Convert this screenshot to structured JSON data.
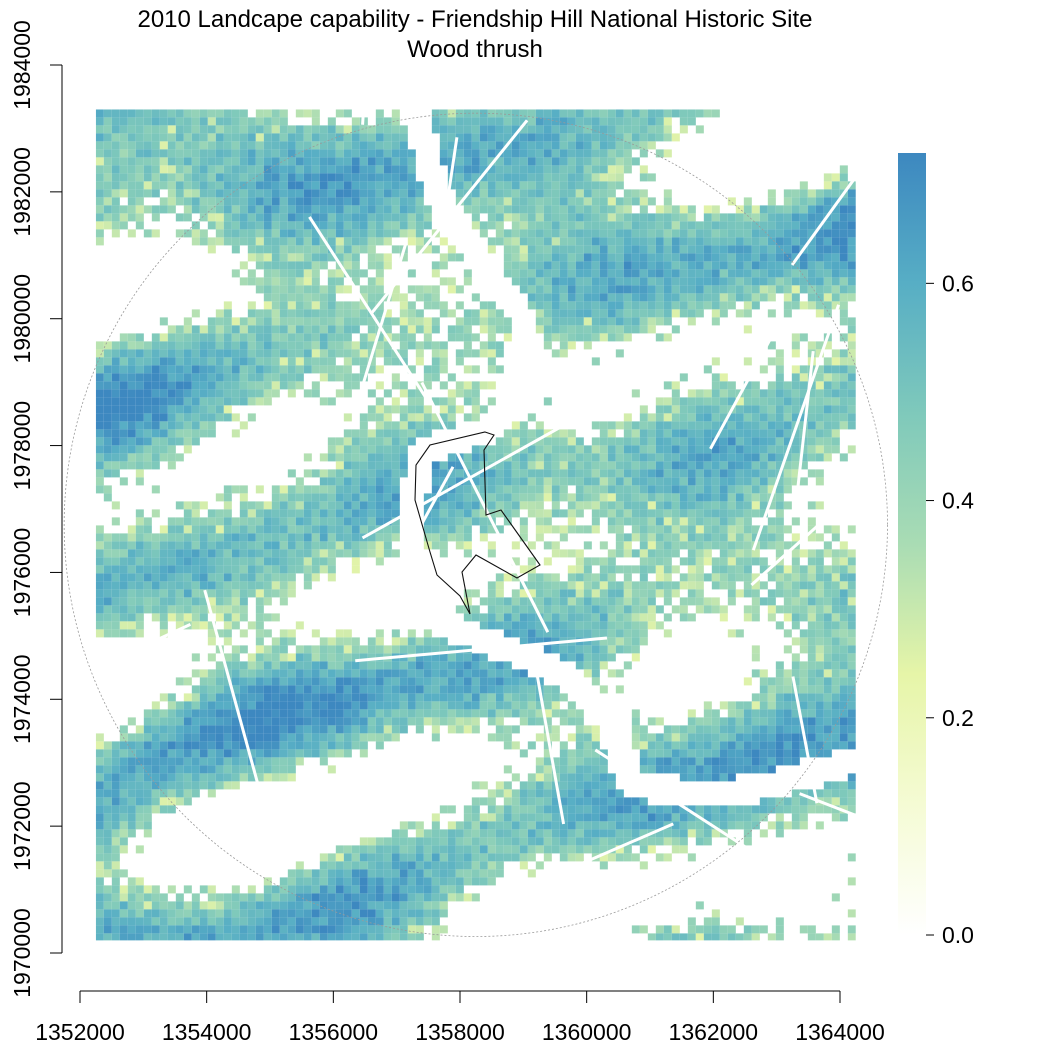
{
  "title": {
    "line1": "2010 Landcape capability - Friendship Hill National Historic Site",
    "line2": "Wood thrush"
  },
  "map": {
    "x_axis": {
      "ticks": [
        1352000,
        1354000,
        1356000,
        1358000,
        1360000,
        1362000,
        1364000
      ],
      "tick_labels": [
        "1352000",
        "1354000",
        "1356000",
        "1358000",
        "1360000",
        "1362000",
        "1364000"
      ],
      "range": [
        1352000,
        1364000
      ]
    },
    "y_axis": {
      "ticks": [
        1970000,
        1972000,
        1974000,
        1976000,
        1978000,
        1980000,
        1982000,
        1984000
      ],
      "tick_labels": [
        "1970000",
        "1972000",
        "1974000",
        "1976000",
        "1978000",
        "1980000",
        "1982000",
        "1984000"
      ],
      "range": [
        1970000,
        1984000
      ]
    },
    "raster_extent": {
      "x": [
        1352250,
        1364250
      ],
      "y": [
        1970200,
        1983300
      ]
    },
    "study_circle_radius": 6500,
    "park_boundary_outline": true
  },
  "legend": {
    "position": "right",
    "ticks": [
      0.0,
      0.2,
      0.4,
      0.6
    ],
    "tick_labels": [
      "0.0",
      "0.2",
      "0.4",
      "0.6"
    ],
    "range": [
      0.0,
      0.72
    ],
    "colors": [
      "#ffffff",
      "#f5fbd4",
      "#e6f5a8",
      "#a9dcb4",
      "#7fc9bb",
      "#57aec5",
      "#3d88c0"
    ]
  }
}
